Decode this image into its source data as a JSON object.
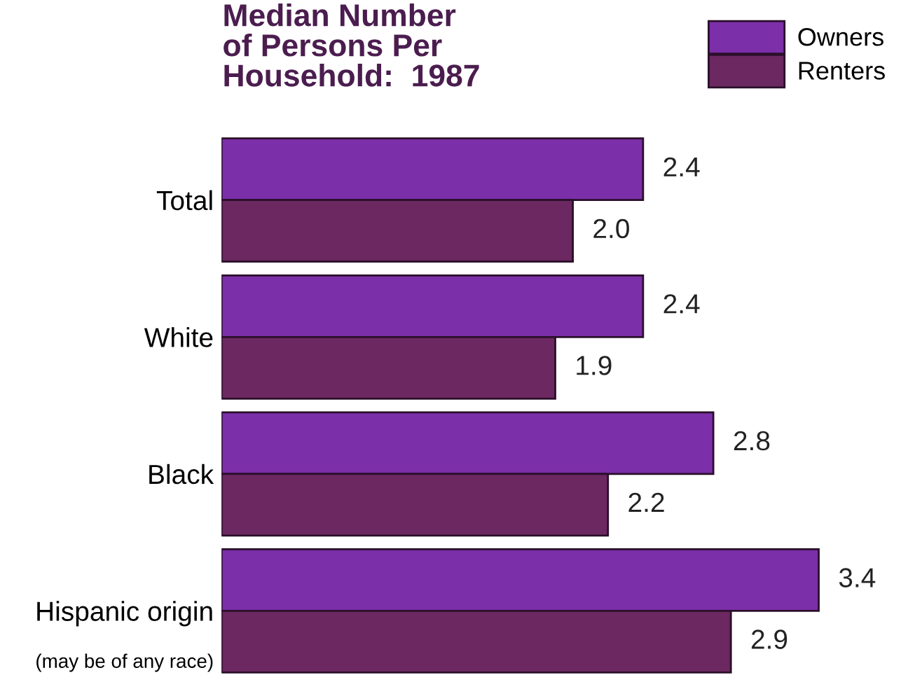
{
  "chart_data": {
    "type": "bar",
    "orientation": "horizontal",
    "title": "Median Number\nof Persons Per\nHousehold:  1987",
    "categories": [
      "Total",
      "White",
      "Black",
      "Hispanic origin"
    ],
    "series": [
      {
        "name": "Owners",
        "color": "#7b2fa8",
        "values": [
          2.4,
          2.4,
          2.8,
          3.4
        ],
        "value_labels": [
          "2.4",
          "2.4",
          "2.8",
          "3.4"
        ]
      },
      {
        "name": "Renters",
        "color": "#6c2860",
        "values": [
          2.0,
          1.9,
          2.2,
          2.9
        ],
        "value_labels": [
          "2.0",
          "1.9",
          "2.2",
          "2.9"
        ]
      }
    ],
    "legend": "top right",
    "grid": false,
    "annotations": [
      "(may be of any race)"
    ]
  }
}
